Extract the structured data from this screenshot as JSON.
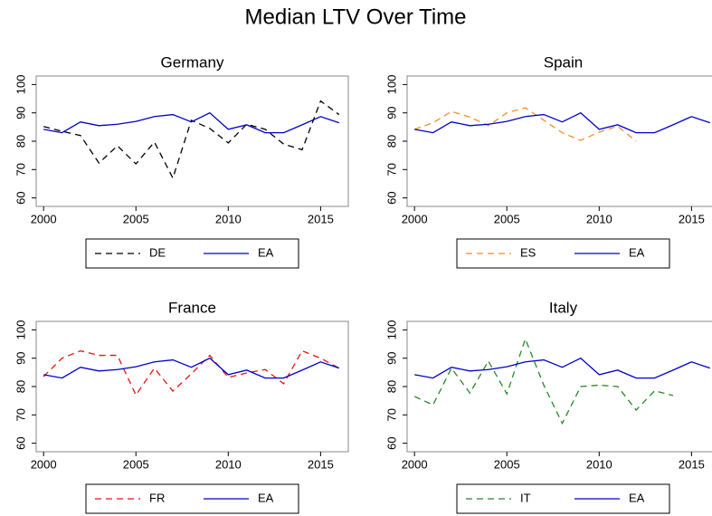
{
  "title": "Median LTV Over Time",
  "chart_data": [
    {
      "type": "line",
      "title": "Germany",
      "x": [
        2000,
        2001,
        2002,
        2003,
        2004,
        2005,
        2006,
        2007,
        2008,
        2009,
        2010,
        2011,
        2012,
        2013,
        2014,
        2015,
        2016
      ],
      "series": [
        {
          "name": "DE",
          "color": "#000000",
          "line_style": "dashed",
          "values": [
            85.2,
            83.5,
            82,
            72.3,
            78.4,
            72,
            79.7,
            67,
            87.4,
            84.5,
            79.4,
            86,
            84.2,
            79,
            77,
            94.2,
            89.4
          ]
        },
        {
          "name": "EA",
          "color": "#0000cc",
          "line_style": "solid",
          "values": [
            84.2,
            83,
            86.8,
            85.5,
            86,
            87,
            88.7,
            89.4,
            86.8,
            90,
            84.2,
            85.8,
            83,
            83,
            85.8,
            88.7,
            86.5
          ]
        }
      ],
      "xlim": [
        1999.6,
        2016.5
      ],
      "xticks": [
        2000,
        2005,
        2010,
        2015
      ],
      "ylim": [
        57,
        103
      ],
      "yticks": [
        60,
        70,
        80,
        90,
        100
      ]
    },
    {
      "type": "line",
      "title": "Spain",
      "x": [
        2000,
        2001,
        2002,
        2003,
        2004,
        2005,
        2006,
        2007,
        2008,
        2009,
        2010,
        2011,
        2012,
        2013,
        2014,
        2015,
        2016
      ],
      "series": [
        {
          "name": "ES",
          "color": "#f28e2b",
          "line_style": "dashed",
          "values": [
            84.2,
            86.5,
            90.5,
            88.5,
            85.5,
            90,
            91.8,
            87.4,
            83,
            80.3,
            83.2,
            85.3,
            80,
            null,
            null,
            null,
            null
          ]
        },
        {
          "name": "EA",
          "color": "#0000cc",
          "line_style": "solid",
          "values": [
            84.2,
            83,
            86.8,
            85.5,
            86,
            87,
            88.7,
            89.4,
            86.8,
            90,
            84.2,
            85.8,
            83,
            83,
            85.8,
            88.7,
            86.5
          ]
        }
      ],
      "xlim": [
        1999.6,
        2016.5
      ],
      "xticks": [
        2000,
        2005,
        2010,
        2015
      ],
      "ylim": [
        57,
        103
      ],
      "yticks": [
        60,
        70,
        80,
        90,
        100
      ]
    },
    {
      "type": "line",
      "title": "France",
      "x": [
        2000,
        2001,
        2002,
        2003,
        2004,
        2005,
        2006,
        2007,
        2008,
        2009,
        2010,
        2011,
        2012,
        2013,
        2014,
        2015,
        2016
      ],
      "series": [
        {
          "name": "FR",
          "color": "#ee1111",
          "line_style": "dashed",
          "values": [
            83.5,
            90,
            92.6,
            91,
            91,
            77,
            86.5,
            78.4,
            84.5,
            91,
            83.2,
            84.8,
            86,
            81,
            92.6,
            90,
            86.5
          ]
        },
        {
          "name": "EA",
          "color": "#0000cc",
          "line_style": "solid",
          "values": [
            84.2,
            83,
            86.8,
            85.5,
            86,
            87,
            88.7,
            89.4,
            86.8,
            90,
            84.2,
            85.8,
            83,
            83,
            85.8,
            88.7,
            86.5
          ]
        }
      ],
      "xlim": [
        1999.6,
        2016.5
      ],
      "xticks": [
        2000,
        2005,
        2010,
        2015
      ],
      "ylim": [
        57,
        103
      ],
      "yticks": [
        60,
        70,
        80,
        90,
        100
      ]
    },
    {
      "type": "line",
      "title": "Italy",
      "x": [
        2000,
        2001,
        2002,
        2003,
        2004,
        2005,
        2006,
        2007,
        2008,
        2009,
        2010,
        2011,
        2012,
        2013,
        2014,
        2015,
        2016
      ],
      "series": [
        {
          "name": "IT",
          "color": "#228b22",
          "line_style": "dashed",
          "values": [
            76.5,
            73.5,
            86.5,
            77.7,
            89,
            77.4,
            96.8,
            80.5,
            67,
            80,
            80.5,
            80,
            71.7,
            78.5,
            76.8,
            null,
            null
          ]
        },
        {
          "name": "EA",
          "color": "#0000cc",
          "line_style": "solid",
          "values": [
            84.2,
            83,
            86.8,
            85.5,
            86,
            87,
            88.7,
            89.4,
            86.8,
            90,
            84.2,
            85.8,
            83,
            83,
            85.8,
            88.7,
            86.5
          ]
        }
      ],
      "xlim": [
        1999.6,
        2016.5
      ],
      "xticks": [
        2000,
        2005,
        2010,
        2015
      ],
      "ylim": [
        57,
        103
      ],
      "yticks": [
        60,
        70,
        80,
        90,
        100
      ]
    }
  ]
}
